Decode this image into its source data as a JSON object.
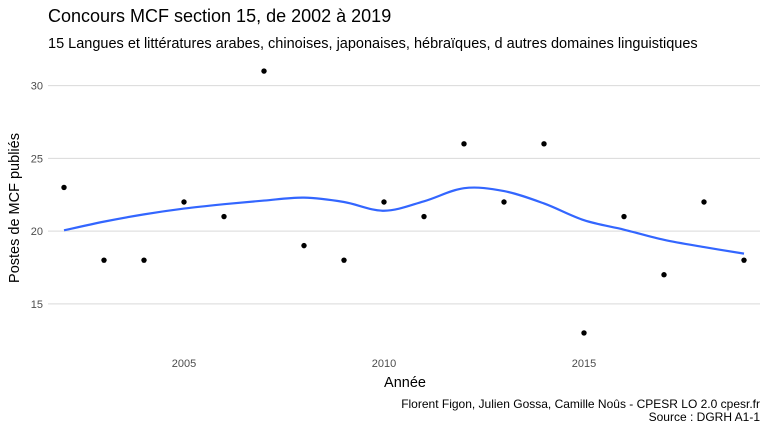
{
  "chart_data": {
    "type": "scatter",
    "title": "Concours MCF section 15, de 2002 à 2019",
    "subtitle": "15 Langues et littératures arabes, chinoises, japonaises, hébraïques, d autres domaines linguistiques",
    "xlabel": "Année",
    "ylabel": "Postes de MCF publiés",
    "caption_line1": "Florent Figon, Julien Gossa, Camille Noûs - CPESR LO 2.0 cpesr.fr",
    "caption_line2": "Source : DGRH A1-1",
    "x_ticks": [
      2005,
      2010,
      2015
    ],
    "y_ticks": [
      15,
      20,
      25,
      30
    ],
    "xlim": [
      2001.6,
      2019.4
    ],
    "ylim": [
      12.1,
      31.9
    ],
    "grid": true,
    "points": [
      {
        "x": 2002,
        "y": 23
      },
      {
        "x": 2003,
        "y": 18
      },
      {
        "x": 2004,
        "y": 18
      },
      {
        "x": 2005,
        "y": 22
      },
      {
        "x": 2006,
        "y": 21
      },
      {
        "x": 2007,
        "y": 31
      },
      {
        "x": 2008,
        "y": 19
      },
      {
        "x": 2009,
        "y": 18
      },
      {
        "x": 2010,
        "y": 22
      },
      {
        "x": 2011,
        "y": 21
      },
      {
        "x": 2012,
        "y": 26
      },
      {
        "x": 2013,
        "y": 22
      },
      {
        "x": 2014,
        "y": 26
      },
      {
        "x": 2015,
        "y": 13
      },
      {
        "x": 2016,
        "y": 21
      },
      {
        "x": 2017,
        "y": 17
      },
      {
        "x": 2018,
        "y": 22
      },
      {
        "x": 2019,
        "y": 18
      }
    ],
    "smooth": [
      {
        "x": 2002,
        "y": 20.05
      },
      {
        "x": 2003,
        "y": 20.65
      },
      {
        "x": 2004,
        "y": 21.15
      },
      {
        "x": 2005,
        "y": 21.55
      },
      {
        "x": 2006,
        "y": 21.85
      },
      {
        "x": 2007,
        "y": 22.1
      },
      {
        "x": 2008,
        "y": 22.3
      },
      {
        "x": 2009,
        "y": 22.0
      },
      {
        "x": 2010,
        "y": 21.4
      },
      {
        "x": 2011,
        "y": 22.05
      },
      {
        "x": 2012,
        "y": 22.95
      },
      {
        "x": 2013,
        "y": 22.75
      },
      {
        "x": 2014,
        "y": 21.9
      },
      {
        "x": 2015,
        "y": 20.75
      },
      {
        "x": 2016,
        "y": 20.1
      },
      {
        "x": 2017,
        "y": 19.4
      },
      {
        "x": 2018,
        "y": 18.9
      },
      {
        "x": 2019,
        "y": 18.45
      }
    ],
    "colors": {
      "point": "#000000",
      "smooth": "#3366ff",
      "grid": "#d9d9d9"
    }
  }
}
